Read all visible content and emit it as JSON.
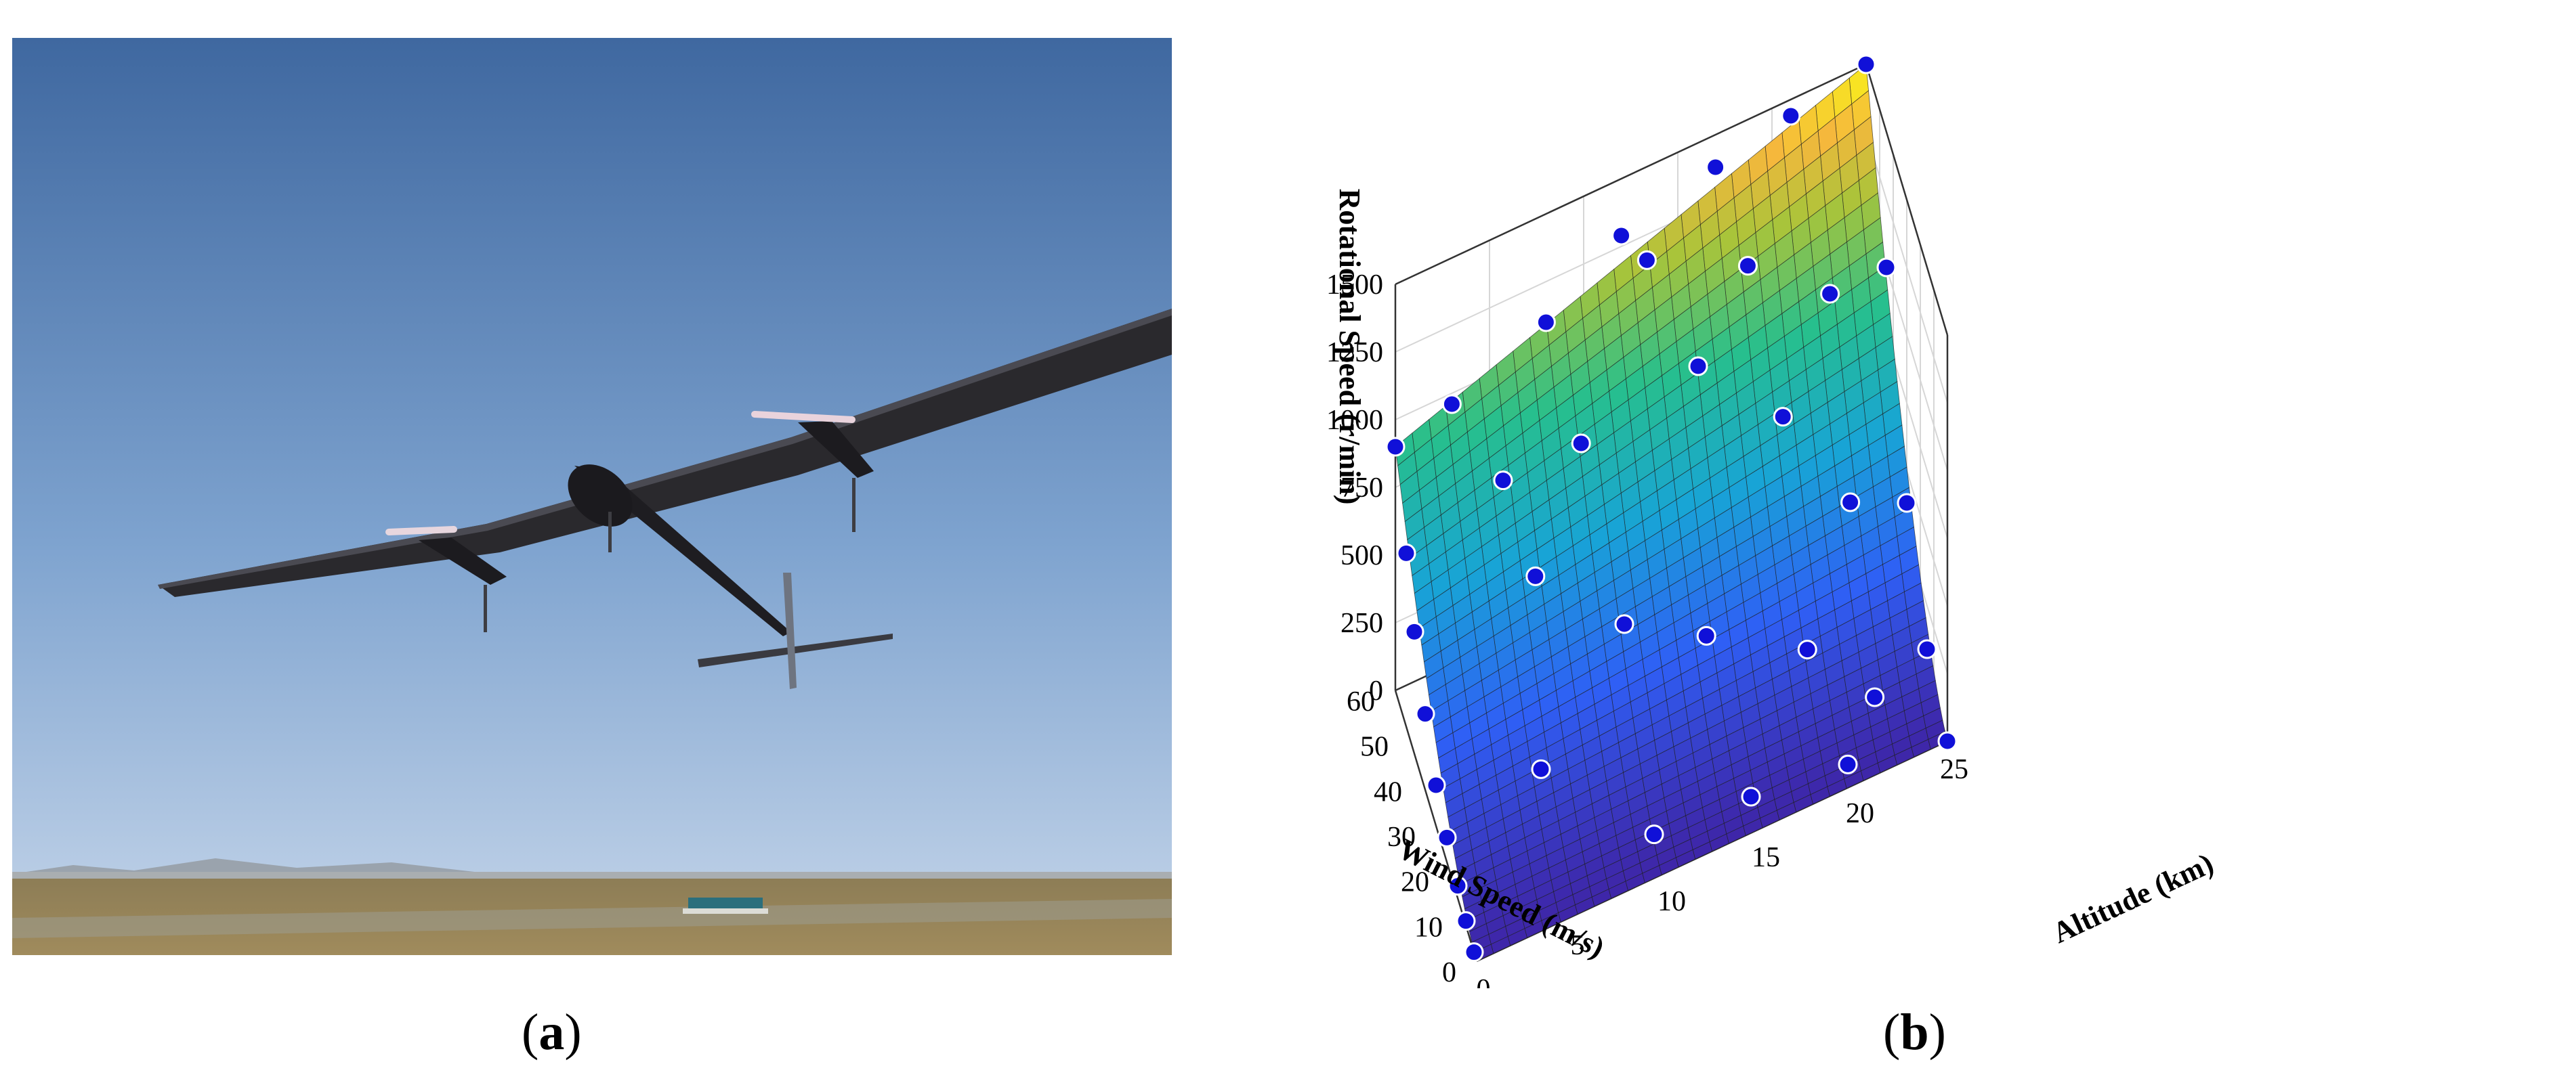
{
  "captions": {
    "a_open": "(",
    "a_letter": "a",
    "a_close": ")",
    "b_open": "(",
    "b_letter": "b",
    "b_close": ")"
  },
  "photo": {
    "subject-icon": "solar-aircraft-photo",
    "colors": {
      "sky_top": "#4a6fa3",
      "sky_bottom": "#b9cde6",
      "ground": "#8b7a52",
      "wing": "#2b2a2e"
    }
  },
  "chart_data": {
    "type": "surface3d",
    "zlabel": "Rotational Speed  (r/min)",
    "xlabel": "Altitude  (km)",
    "ylabel": "Wind Speed  (m/s)",
    "x_ticks": [
      "0",
      "5",
      "10",
      "15",
      "20",
      "25"
    ],
    "y_ticks": [
      "0",
      "10",
      "20",
      "30",
      "40",
      "50",
      "60"
    ],
    "z_ticks": [
      "0",
      "250",
      "500",
      "750",
      "1000",
      "1250",
      "1500"
    ],
    "xlim": [
      0,
      25
    ],
    "ylim": [
      0,
      60
    ],
    "zlim": [
      0,
      1500
    ],
    "colormap": "parula",
    "surface_corners": [
      {
        "altitude": 0,
        "wind": 0,
        "speed": 0
      },
      {
        "altitude": 25,
        "wind": 0,
        "speed": 0
      },
      {
        "altitude": 0,
        "wind": 60,
        "speed": 900
      },
      {
        "altitude": 25,
        "wind": 60,
        "speed": 1500
      }
    ],
    "points": [
      {
        "altitude": 0,
        "wind": 60,
        "speed": 900
      },
      {
        "altitude": 0,
        "wind": 52,
        "speed": 640
      },
      {
        "altitude": 0,
        "wind": 46,
        "speed": 450
      },
      {
        "altitude": 0,
        "wind": 38,
        "speed": 280
      },
      {
        "altitude": 0,
        "wind": 30,
        "speed": 150
      },
      {
        "altitude": 0,
        "wind": 22,
        "speed": 90
      },
      {
        "altitude": 0,
        "wind": 14,
        "speed": 45
      },
      {
        "altitude": 0,
        "wind": 8,
        "speed": 15
      },
      {
        "altitude": 0,
        "wind": 2,
        "speed": 0
      },
      {
        "altitude": 3,
        "wind": 60,
        "speed": 960
      },
      {
        "altitude": 5,
        "wind": 50,
        "speed": 780
      },
      {
        "altitude": 6,
        "wind": 40,
        "speed": 560
      },
      {
        "altitude": 5,
        "wind": 22,
        "speed": 180
      },
      {
        "altitude": 8,
        "wind": 60,
        "speed": 1100
      },
      {
        "altitude": 9,
        "wind": 48,
        "speed": 820
      },
      {
        "altitude": 10,
        "wind": 30,
        "speed": 420
      },
      {
        "altitude": 10,
        "wind": 8,
        "speed": 10
      },
      {
        "altitude": 12,
        "wind": 60,
        "speed": 1290
      },
      {
        "altitude": 13,
        "wind": 55,
        "speed": 1250
      },
      {
        "altitude": 15,
        "wind": 45,
        "speed": 960
      },
      {
        "altitude": 14,
        "wind": 25,
        "speed": 330
      },
      {
        "altitude": 15,
        "wind": 6,
        "speed": 20
      },
      {
        "altitude": 17,
        "wind": 60,
        "speed": 1380
      },
      {
        "altitude": 18,
        "wind": 50,
        "speed": 1150
      },
      {
        "altitude": 19,
        "wind": 38,
        "speed": 760
      },
      {
        "altitude": 19,
        "wind": 20,
        "speed": 200
      },
      {
        "altitude": 20,
        "wind": 4,
        "speed": 10
      },
      {
        "altitude": 21,
        "wind": 60,
        "speed": 1440
      },
      {
        "altitude": 22,
        "wind": 45,
        "speed": 1000
      },
      {
        "altitude": 22,
        "wind": 30,
        "speed": 480
      },
      {
        "altitude": 22,
        "wind": 12,
        "speed": 60
      },
      {
        "altitude": 25,
        "wind": 60,
        "speed": 1500
      },
      {
        "altitude": 25,
        "wind": 45,
        "speed": 1000
      },
      {
        "altitude": 25,
        "wind": 30,
        "speed": 380
      },
      {
        "altitude": 25,
        "wind": 15,
        "speed": 90
      },
      {
        "altitude": 25,
        "wind": 0,
        "speed": 0
      }
    ],
    "colors": {
      "marker_fill": "#1010d8",
      "marker_edge": "#ffffff",
      "axis": "#333333",
      "grid": "#d6d6d6"
    }
  }
}
